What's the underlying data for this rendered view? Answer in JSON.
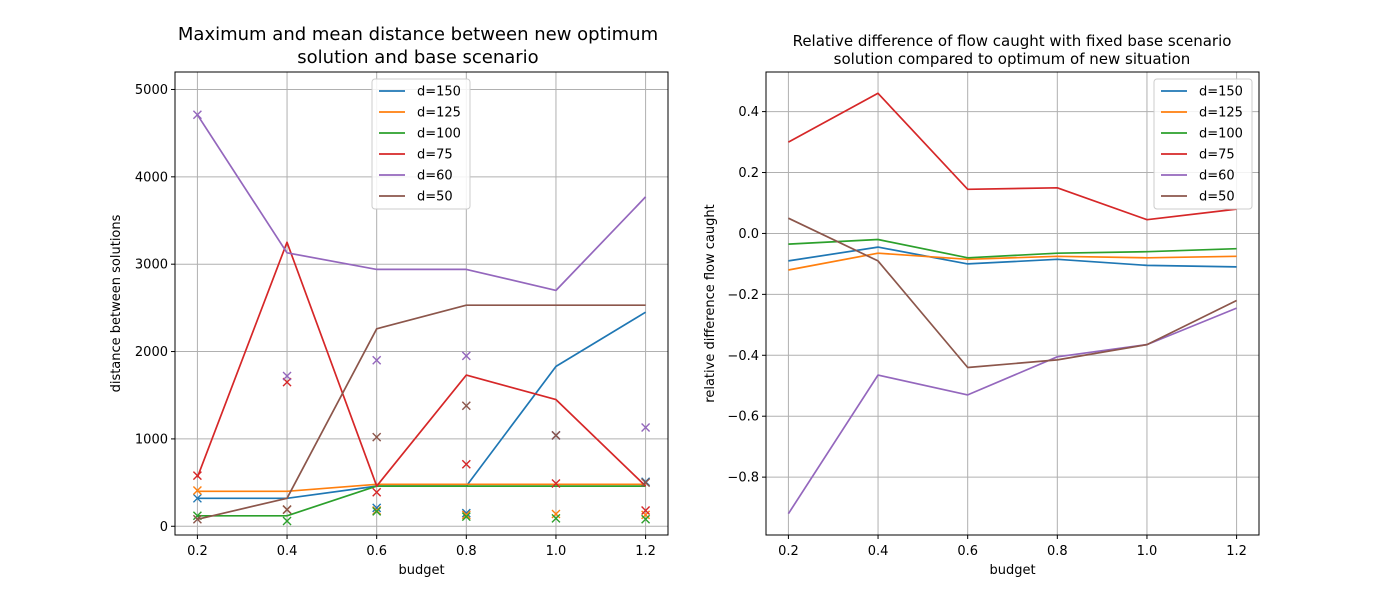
{
  "chart_data": [
    {
      "type": "line",
      "title": [
        "Maximum and mean distance between new optimum",
        "solution and base scenario"
      ],
      "xlabel": "budget",
      "ylabel": "distance between solutions",
      "x": [
        0.2,
        0.4,
        0.6,
        0.8,
        1.0,
        1.2
      ],
      "xticks": [
        "0.2",
        "0.4",
        "0.6",
        "0.8",
        "1.0",
        "1.2"
      ],
      "yticks": [
        "0",
        "1000",
        "2000",
        "3000",
        "4000",
        "5000"
      ],
      "xlim": [
        0.15,
        1.25
      ],
      "ylim": [
        -100,
        5200
      ],
      "grid": true,
      "legend": "top-center",
      "markers": "x for mean distance",
      "series": [
        {
          "name": "d=150",
          "color": "#1f77b4",
          "line": [
            320,
            320,
            460,
            460,
            1830,
            2450
          ],
          "marks": [
            320,
            190,
            210,
            150,
            1040,
            510
          ]
        },
        {
          "name": "d=125",
          "color": "#ff7f0e",
          "line": [
            400,
            400,
            480,
            480,
            480,
            480
          ],
          "marks": [
            410,
            190,
            180,
            130,
            140,
            130
          ]
        },
        {
          "name": "d=100",
          "color": "#2ca02c",
          "line": [
            120,
            120,
            460,
            460,
            460,
            460
          ],
          "marks": [
            120,
            60,
            170,
            110,
            90,
            80
          ]
        },
        {
          "name": "d=75",
          "color": "#d62728",
          "line": [
            560,
            3250,
            460,
            1730,
            1450,
            460
          ],
          "marks": [
            580,
            1650,
            390,
            710,
            490,
            180
          ]
        },
        {
          "name": "d=60",
          "color": "#9467bd",
          "line": [
            4710,
            3130,
            2940,
            2940,
            2700,
            3770
          ],
          "marks": [
            4710,
            1720,
            1900,
            1950,
            1040,
            1130
          ]
        },
        {
          "name": "d=50",
          "color": "#8c564b",
          "line": [
            80,
            320,
            2260,
            2530,
            2530,
            2530
          ],
          "marks": [
            80,
            190,
            1020,
            1380,
            1040,
            500
          ]
        }
      ]
    },
    {
      "type": "line",
      "title": [
        "Relative difference of flow caught with fixed base scenario",
        "solution compared to optimum of new situation"
      ],
      "xlabel": "budget",
      "ylabel": "relative difference flow caught",
      "x": [
        0.2,
        0.4,
        0.6,
        0.8,
        1.0,
        1.2
      ],
      "xticks": [
        "0.2",
        "0.4",
        "0.6",
        "0.8",
        "1.0",
        "1.2"
      ],
      "yticks": [
        "−0.8",
        "−0.6",
        "−0.4",
        "−0.2",
        "0.0",
        "0.2",
        "0.4"
      ],
      "ytick_values": [
        -0.8,
        -0.6,
        -0.4,
        -0.2,
        0.0,
        0.2,
        0.4
      ],
      "xlim": [
        0.15,
        1.25
      ],
      "ylim": [
        -0.99,
        0.53
      ],
      "grid": true,
      "legend": "top-right",
      "series": [
        {
          "name": "d=150",
          "color": "#1f77b4",
          "values": [
            -0.09,
            -0.045,
            -0.1,
            -0.085,
            -0.105,
            -0.11
          ]
        },
        {
          "name": "d=125",
          "color": "#ff7f0e",
          "values": [
            -0.12,
            -0.065,
            -0.085,
            -0.075,
            -0.08,
            -0.075
          ]
        },
        {
          "name": "d=100",
          "color": "#2ca02c",
          "values": [
            -0.035,
            -0.02,
            -0.08,
            -0.065,
            -0.06,
            -0.05
          ]
        },
        {
          "name": "d=75",
          "color": "#d62728",
          "values": [
            0.3,
            0.46,
            0.145,
            0.15,
            0.045,
            0.08
          ]
        },
        {
          "name": "d=60",
          "color": "#9467bd",
          "values": [
            -0.92,
            -0.465,
            -0.53,
            -0.405,
            -0.365,
            -0.245
          ]
        },
        {
          "name": "d=50",
          "color": "#8c564b",
          "values": [
            0.05,
            -0.09,
            -0.44,
            -0.415,
            -0.365,
            -0.22
          ]
        }
      ]
    }
  ]
}
